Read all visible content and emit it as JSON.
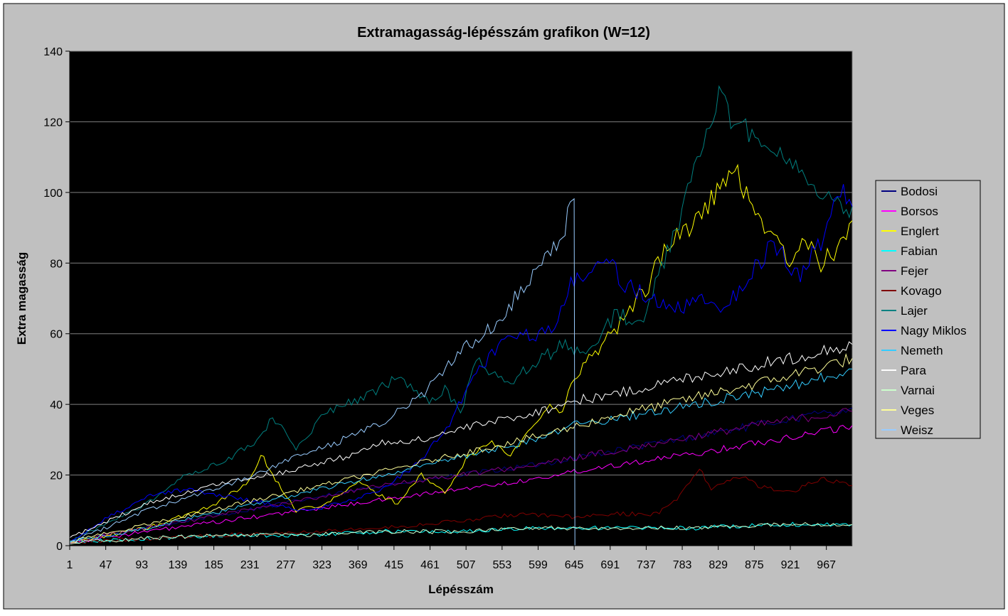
{
  "chart_data": {
    "type": "line",
    "title": "Extramagasság-lépésszám grafikon (W=12)",
    "xlabel": "Lépésszám",
    "ylabel": "Extra magasság",
    "x_range": [
      1,
      1000
    ],
    "ylim": [
      0,
      140
    ],
    "y_ticks": [
      0,
      20,
      40,
      60,
      80,
      100,
      120,
      140
    ],
    "x_ticks": [
      1,
      47,
      93,
      139,
      185,
      231,
      277,
      323,
      369,
      415,
      461,
      507,
      553,
      599,
      645,
      691,
      737,
      783,
      829,
      875,
      921,
      967
    ],
    "grid": "horizontal",
    "legend": "right",
    "plot_background": "#000000",
    "series": [
      {
        "name": "Bodosi",
        "color": "#000080",
        "points": [
          [
            1,
            1
          ],
          [
            100,
            5
          ],
          [
            200,
            9
          ],
          [
            300,
            13
          ],
          [
            400,
            17
          ],
          [
            500,
            20
          ],
          [
            600,
            23
          ],
          [
            700,
            27
          ],
          [
            800,
            31
          ],
          [
            900,
            35
          ],
          [
            1000,
            39
          ]
        ]
      },
      {
        "name": "Borsos",
        "color": "#ff00ff",
        "points": [
          [
            1,
            1
          ],
          [
            100,
            4
          ],
          [
            200,
            7
          ],
          [
            300,
            10
          ],
          [
            400,
            13
          ],
          [
            500,
            16
          ],
          [
            600,
            19
          ],
          [
            645,
            21
          ],
          [
            700,
            23
          ],
          [
            800,
            26
          ],
          [
            900,
            30
          ],
          [
            1000,
            34
          ]
        ]
      },
      {
        "name": "Englert",
        "color": "#ffff00",
        "points": [
          [
            1,
            1
          ],
          [
            100,
            5
          ],
          [
            180,
            11
          ],
          [
            230,
            18
          ],
          [
            245,
            26
          ],
          [
            260,
            20
          ],
          [
            290,
            10
          ],
          [
            330,
            12
          ],
          [
            370,
            18
          ],
          [
            400,
            14
          ],
          [
            420,
            12
          ],
          [
            450,
            20
          ],
          [
            480,
            15
          ],
          [
            510,
            25
          ],
          [
            540,
            30
          ],
          [
            560,
            25
          ],
          [
            590,
            33
          ],
          [
            610,
            40
          ],
          [
            630,
            37
          ],
          [
            645,
            48
          ],
          [
            660,
            52
          ],
          [
            700,
            62
          ],
          [
            740,
            74
          ],
          [
            760,
            84
          ],
          [
            800,
            92
          ],
          [
            820,
            98
          ],
          [
            850,
            106
          ],
          [
            880,
            94
          ],
          [
            920,
            80
          ],
          [
            940,
            86
          ],
          [
            960,
            80
          ],
          [
            985,
            84
          ],
          [
            1000,
            92
          ]
        ]
      },
      {
        "name": "Fabian",
        "color": "#00ffff",
        "points": [
          [
            1,
            1
          ],
          [
            100,
            2
          ],
          [
            200,
            3
          ],
          [
            300,
            3
          ],
          [
            400,
            4
          ],
          [
            500,
            4
          ],
          [
            600,
            5
          ],
          [
            700,
            5
          ],
          [
            800,
            5
          ],
          [
            900,
            6
          ],
          [
            1000,
            6
          ]
        ]
      },
      {
        "name": "Fejer",
        "color": "#800080",
        "points": [
          [
            1,
            1
          ],
          [
            100,
            5
          ],
          [
            200,
            9
          ],
          [
            300,
            13
          ],
          [
            400,
            17
          ],
          [
            500,
            20
          ],
          [
            600,
            23
          ],
          [
            700,
            27
          ],
          [
            800,
            31
          ],
          [
            900,
            35
          ],
          [
            1000,
            38
          ]
        ]
      },
      {
        "name": "Kovago",
        "color": "#800000",
        "points": [
          [
            1,
            1
          ],
          [
            100,
            2
          ],
          [
            200,
            3
          ],
          [
            300,
            4
          ],
          [
            400,
            5
          ],
          [
            500,
            7
          ],
          [
            580,
            9
          ],
          [
            650,
            8
          ],
          [
            700,
            9
          ],
          [
            750,
            9
          ],
          [
            780,
            14
          ],
          [
            805,
            22
          ],
          [
            820,
            16
          ],
          [
            860,
            20
          ],
          [
            880,
            17
          ],
          [
            920,
            15
          ],
          [
            960,
            19
          ],
          [
            1000,
            17
          ]
        ]
      },
      {
        "name": "Lajer",
        "color": "#008080",
        "points": [
          [
            1,
            1
          ],
          [
            100,
            12
          ],
          [
            150,
            20
          ],
          [
            200,
            24
          ],
          [
            240,
            30
          ],
          [
            260,
            36
          ],
          [
            290,
            28
          ],
          [
            330,
            38
          ],
          [
            380,
            42
          ],
          [
            420,
            48
          ],
          [
            460,
            40
          ],
          [
            480,
            44
          ],
          [
            500,
            38
          ],
          [
            520,
            52
          ],
          [
            560,
            46
          ],
          [
            600,
            52
          ],
          [
            630,
            57
          ],
          [
            660,
            54
          ],
          [
            700,
            66
          ],
          [
            730,
            62
          ],
          [
            760,
            80
          ],
          [
            790,
            100
          ],
          [
            810,
            114
          ],
          [
            830,
            126
          ],
          [
            860,
            118
          ],
          [
            900,
            114
          ],
          [
            940,
            104
          ],
          [
            970,
            98
          ],
          [
            1000,
            96
          ]
        ]
      },
      {
        "name": "Nagy Miklos",
        "color": "#0000ff",
        "points": [
          [
            1,
            1
          ],
          [
            50,
            8
          ],
          [
            100,
            14
          ],
          [
            150,
            16
          ],
          [
            200,
            14
          ],
          [
            250,
            12
          ],
          [
            300,
            10
          ],
          [
            350,
            12
          ],
          [
            400,
            16
          ],
          [
            450,
            24
          ],
          [
            490,
            36
          ],
          [
            520,
            50
          ],
          [
            560,
            58
          ],
          [
            600,
            60
          ],
          [
            620,
            62
          ],
          [
            645,
            76
          ],
          [
            660,
            78
          ],
          [
            690,
            80
          ],
          [
            710,
            74
          ],
          [
            740,
            70
          ],
          [
            770,
            66
          ],
          [
            800,
            70
          ],
          [
            840,
            68
          ],
          [
            880,
            80
          ],
          [
            900,
            86
          ],
          [
            930,
            76
          ],
          [
            960,
            86
          ],
          [
            985,
            100
          ],
          [
            1000,
            96
          ]
        ]
      },
      {
        "name": "Nemeth",
        "color": "#33ccff",
        "points": [
          [
            1,
            1
          ],
          [
            100,
            5
          ],
          [
            200,
            10
          ],
          [
            300,
            15
          ],
          [
            400,
            20
          ],
          [
            500,
            25
          ],
          [
            600,
            30
          ],
          [
            645,
            34
          ],
          [
            700,
            36
          ],
          [
            800,
            40
          ],
          [
            900,
            44
          ],
          [
            1000,
            50
          ]
        ]
      },
      {
        "name": "Para",
        "color": "#ffffff",
        "points": [
          [
            1,
            2
          ],
          [
            100,
            12
          ],
          [
            200,
            18
          ],
          [
            277,
            21
          ],
          [
            350,
            25
          ],
          [
            400,
            29
          ],
          [
            450,
            30
          ],
          [
            500,
            33
          ],
          [
            600,
            38
          ],
          [
            645,
            41
          ],
          [
            700,
            43
          ],
          [
            800,
            48
          ],
          [
            900,
            52
          ],
          [
            1000,
            57
          ]
        ]
      },
      {
        "name": "Varnai",
        "color": "#ccffcc",
        "points": [
          [
            1,
            1
          ],
          [
            100,
            2
          ],
          [
            200,
            3
          ],
          [
            300,
            3
          ],
          [
            400,
            4
          ],
          [
            500,
            4
          ],
          [
            600,
            5
          ],
          [
            700,
            5
          ],
          [
            800,
            5
          ],
          [
            900,
            6
          ],
          [
            1000,
            6
          ]
        ]
      },
      {
        "name": "Veges",
        "color": "#ffff99",
        "points": [
          [
            1,
            1
          ],
          [
            100,
            6
          ],
          [
            200,
            11
          ],
          [
            300,
            16
          ],
          [
            400,
            21
          ],
          [
            500,
            26
          ],
          [
            600,
            31
          ],
          [
            700,
            37
          ],
          [
            800,
            42
          ],
          [
            900,
            47
          ],
          [
            1000,
            53
          ]
        ]
      },
      {
        "name": "Weisz",
        "color": "#99ccff",
        "points": [
          [
            1,
            1
          ],
          [
            100,
            10
          ],
          [
            200,
            17
          ],
          [
            300,
            26
          ],
          [
            350,
            30
          ],
          [
            400,
            35
          ],
          [
            450,
            42
          ],
          [
            500,
            55
          ],
          [
            550,
            64
          ],
          [
            600,
            80
          ],
          [
            630,
            88
          ],
          [
            640,
            96
          ],
          [
            645,
            98
          ],
          [
            646,
            0
          ]
        ]
      }
    ]
  }
}
